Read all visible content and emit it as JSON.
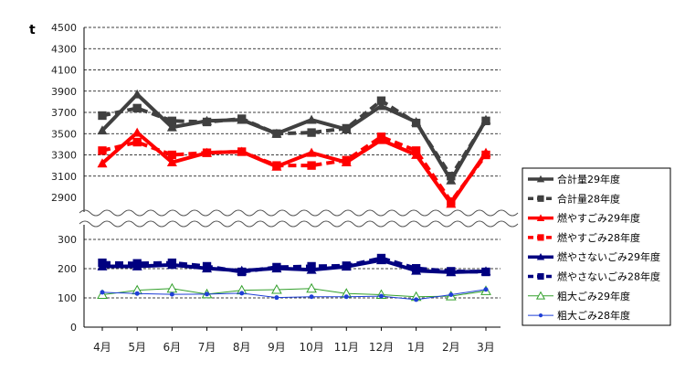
{
  "chart_data": {
    "type": "line",
    "unit_label": "t",
    "categories": [
      "4月",
      "5月",
      "6月",
      "7月",
      "8月",
      "9月",
      "10月",
      "11月",
      "12月",
      "1月",
      "2月",
      "3月"
    ],
    "upper_axis": {
      "ylim": [
        2900,
        4500
      ],
      "ticks": [
        2900,
        3100,
        3300,
        3500,
        3700,
        3900,
        4100,
        4300,
        4500
      ],
      "grid": true
    },
    "lower_axis": {
      "ylim": [
        0,
        300
      ],
      "ticks": [
        0,
        100,
        200,
        300
      ],
      "grid": true
    },
    "series": [
      {
        "name": "合計量29年度",
        "axis": "upper",
        "color": "#404040",
        "dash": false,
        "marker": "triangle",
        "width": 4,
        "values": [
          3530,
          3870,
          3560,
          3620,
          3630,
          3500,
          3630,
          3540,
          3760,
          3610,
          3060,
          3630
        ]
      },
      {
        "name": "合計量28年度",
        "axis": "upper",
        "color": "#404040",
        "dash": true,
        "marker": "square",
        "width": 4,
        "values": [
          3670,
          3740,
          3620,
          3610,
          3640,
          3500,
          3510,
          3550,
          3810,
          3600,
          3100,
          3620
        ]
      },
      {
        "name": "燃やすごみ29年度",
        "axis": "upper",
        "color": "#ff0000",
        "dash": false,
        "marker": "triangle",
        "width": 4,
        "values": [
          3220,
          3510,
          3230,
          3320,
          3330,
          3190,
          3320,
          3230,
          3440,
          3300,
          2840,
          3320
        ]
      },
      {
        "name": "燃やすごみ28年度",
        "axis": "upper",
        "color": "#ff0000",
        "dash": true,
        "marker": "square",
        "width": 4,
        "values": [
          3340,
          3420,
          3300,
          3320,
          3330,
          3200,
          3200,
          3250,
          3470,
          3340,
          2860,
          3300
        ]
      },
      {
        "name": "燃やさないごみ29年度",
        "axis": "lower",
        "color": "#000080",
        "dash": false,
        "marker": "triangle",
        "width": 4,
        "values": [
          208,
          208,
          213,
          201,
          193,
          201,
          196,
          207,
          229,
          193,
          188,
          191
        ]
      },
      {
        "name": "燃やさないごみ28年度",
        "axis": "lower",
        "color": "#000080",
        "dash": true,
        "marker": "square",
        "width": 4,
        "values": [
          220,
          218,
          220,
          208,
          189,
          205,
          208,
          210,
          236,
          201,
          191,
          189
        ]
      },
      {
        "name": "粗大ごみ29年度",
        "axis": "lower",
        "color": "#33a02c",
        "dash": false,
        "marker": "triangle-open",
        "width": 1,
        "values": [
          111,
          126,
          132,
          113,
          126,
          128,
          132,
          115,
          111,
          104,
          106,
          124
        ]
      },
      {
        "name": "粗大ごみ28年度",
        "axis": "lower",
        "color": "#1f3fd6",
        "dash": false,
        "marker": "dot",
        "width": 1,
        "values": [
          119,
          115,
          112,
          113,
          116,
          101,
          104,
          104,
          106,
          94,
          111,
          129
        ]
      }
    ],
    "legend_position": "right"
  }
}
